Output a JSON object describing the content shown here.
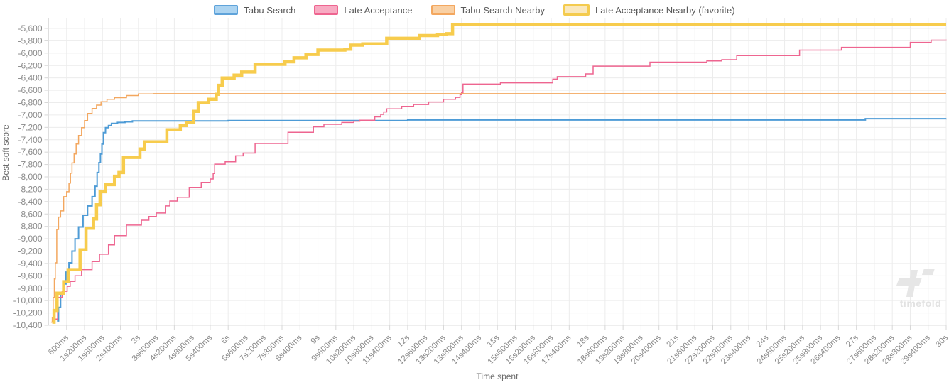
{
  "legend": {
    "items": [
      {
        "label": "Tabu Search",
        "fill": "#ACD4F1",
        "border": "#5FA3DA",
        "thick": false
      },
      {
        "label": "Late Acceptance",
        "fill": "#F8ABC3",
        "border": "#EE6590",
        "thick": false
      },
      {
        "label": "Tabu Search Nearby",
        "fill": "#F9D0A4",
        "border": "#F3A75F",
        "thick": false
      },
      {
        "label": "Late Acceptance Nearby (favorite)",
        "fill": "#FAE8BC",
        "border": "#F4CB4E",
        "thick": true
      }
    ]
  },
  "axes": {
    "x_title": "Time spent",
    "y_title": "Best soft score"
  },
  "watermark": {
    "text": "timefold"
  },
  "chart_data": {
    "type": "line",
    "step": true,
    "title": "",
    "xlabel": "Time spent",
    "ylabel": "Best soft score",
    "grid": true,
    "legend_position": "top",
    "xlim_seconds": [
      0,
      30
    ],
    "ylim": [
      -10400,
      -5500
    ],
    "x_tick_interval_ms": 600,
    "x_tick_labels": [
      "600ms",
      "1s200ms",
      "1s800ms",
      "2s400ms",
      "3s",
      "3s600ms",
      "4s200ms",
      "4s800ms",
      "5s400ms",
      "6s",
      "6s600ms",
      "7s200ms",
      "7s800ms",
      "8s400ms",
      "9s",
      "9s600ms",
      "10s200ms",
      "10s800ms",
      "11s400ms",
      "12s",
      "12s600ms",
      "13s200ms",
      "13s800ms",
      "14s400ms",
      "15s",
      "15s600ms",
      "16s200ms",
      "16s800ms",
      "17s400ms",
      "18s",
      "18s600ms",
      "19s200ms",
      "19s800ms",
      "20s400ms",
      "21s",
      "21s600ms",
      "22s200ms",
      "22s800ms",
      "23s400ms",
      "24s",
      "24s600ms",
      "25s200ms",
      "25s800ms",
      "26s400ms",
      "27s",
      "27s600ms",
      "28s200ms",
      "28s800ms",
      "29s400ms",
      "30s"
    ],
    "y_ticks": [
      -5600,
      -5800,
      -6000,
      -6200,
      -6400,
      -6600,
      -6800,
      -7000,
      -7200,
      -7400,
      -7600,
      -7800,
      -8000,
      -8200,
      -8400,
      -8600,
      -8800,
      -9000,
      -9200,
      -9400,
      -9600,
      -9800,
      -10000,
      -10200,
      -10400
    ],
    "y_tick_labels": [
      "-5,600",
      "-5,800",
      "-6,000",
      "-6,200",
      "-6,400",
      "-6,600",
      "-6,800",
      "-7,000",
      "-7,200",
      "-7,400",
      "-7,600",
      "-7,800",
      "-8,000",
      "-8,200",
      "-8,400",
      "-8,600",
      "-8,800",
      "-9,000",
      "-9,200",
      "-9,400",
      "-9,600",
      "-9,800",
      "-10,000",
      "-10,200",
      "-10,400"
    ],
    "series": [
      {
        "name": "Tabu Search",
        "color": "#4D9BD6",
        "width": 2,
        "points": [
          [
            0.28,
            -10330
          ],
          [
            0.33,
            -10110
          ],
          [
            0.4,
            -9880
          ],
          [
            0.48,
            -9730
          ],
          [
            0.58,
            -9540
          ],
          [
            0.68,
            -9390
          ],
          [
            0.78,
            -9200
          ],
          [
            0.88,
            -9000
          ],
          [
            1.0,
            -8810
          ],
          [
            1.15,
            -8620
          ],
          [
            1.3,
            -8470
          ],
          [
            1.45,
            -8320
          ],
          [
            1.55,
            -8150
          ],
          [
            1.62,
            -7930
          ],
          [
            1.68,
            -7770
          ],
          [
            1.73,
            -7630
          ],
          [
            1.78,
            -7470
          ],
          [
            1.83,
            -7285
          ],
          [
            1.9,
            -7205
          ],
          [
            2.0,
            -7170
          ],
          [
            2.1,
            -7135
          ],
          [
            2.3,
            -7120
          ],
          [
            2.55,
            -7110
          ],
          [
            2.8,
            -7095
          ],
          [
            6.0,
            -7090
          ],
          [
            12.0,
            -7080
          ],
          [
            27.3,
            -7060
          ],
          [
            30,
            -7055
          ]
        ]
      },
      {
        "name": "Late Acceptance",
        "color": "#EE6590",
        "width": 1.5,
        "points": [
          [
            0.22,
            -10300
          ],
          [
            0.3,
            -9950
          ],
          [
            0.45,
            -9850
          ],
          [
            0.62,
            -9770
          ],
          [
            0.72,
            -9690
          ],
          [
            0.88,
            -9600
          ],
          [
            1.1,
            -9500
          ],
          [
            1.45,
            -9370
          ],
          [
            1.7,
            -9250
          ],
          [
            2.0,
            -9100
          ],
          [
            2.2,
            -8950
          ],
          [
            2.6,
            -8780
          ],
          [
            3.1,
            -8700
          ],
          [
            3.35,
            -8640
          ],
          [
            3.6,
            -8585
          ],
          [
            3.9,
            -8470
          ],
          [
            4.05,
            -8390
          ],
          [
            4.3,
            -8330
          ],
          [
            4.7,
            -8170
          ],
          [
            5.1,
            -8090
          ],
          [
            5.4,
            -8035
          ],
          [
            5.5,
            -7945
          ],
          [
            5.55,
            -7795
          ],
          [
            5.9,
            -7755
          ],
          [
            6.25,
            -7660
          ],
          [
            6.5,
            -7615
          ],
          [
            6.9,
            -7460
          ],
          [
            8.0,
            -7280
          ],
          [
            8.85,
            -7190
          ],
          [
            9.2,
            -7150
          ],
          [
            9.8,
            -7120
          ],
          [
            10.2,
            -7100
          ],
          [
            10.4,
            -7085
          ],
          [
            10.9,
            -7030
          ],
          [
            11.1,
            -6990
          ],
          [
            11.2,
            -6950
          ],
          [
            11.3,
            -6900
          ],
          [
            11.8,
            -6860
          ],
          [
            12.2,
            -6830
          ],
          [
            12.7,
            -6790
          ],
          [
            13.2,
            -6745
          ],
          [
            13.6,
            -6715
          ],
          [
            13.75,
            -6670
          ],
          [
            13.8,
            -6640
          ],
          [
            13.85,
            -6500
          ],
          [
            15.1,
            -6480
          ],
          [
            16.85,
            -6420
          ],
          [
            17.0,
            -6380
          ],
          [
            17.95,
            -6335
          ],
          [
            18.2,
            -6210
          ],
          [
            20.1,
            -6145
          ],
          [
            22.0,
            -6125
          ],
          [
            22.5,
            -6105
          ],
          [
            23.0,
            -6040
          ],
          [
            25.1,
            -5950
          ],
          [
            26.5,
            -5905
          ],
          [
            28.8,
            -5825
          ],
          [
            29.5,
            -5790
          ],
          [
            30,
            -5780
          ]
        ]
      },
      {
        "name": "Tabu Search Nearby",
        "color": "#F3A75F",
        "width": 1.5,
        "points": [
          [
            0.08,
            -10350
          ],
          [
            0.12,
            -10270
          ],
          [
            0.15,
            -9950
          ],
          [
            0.19,
            -9650
          ],
          [
            0.22,
            -9390
          ],
          [
            0.27,
            -8850
          ],
          [
            0.33,
            -8650
          ],
          [
            0.4,
            -8550
          ],
          [
            0.5,
            -8320
          ],
          [
            0.6,
            -8240
          ],
          [
            0.68,
            -8100
          ],
          [
            0.73,
            -7940
          ],
          [
            0.78,
            -7775
          ],
          [
            0.85,
            -7630
          ],
          [
            0.92,
            -7470
          ],
          [
            1.0,
            -7330
          ],
          [
            1.1,
            -7205
          ],
          [
            1.2,
            -7090
          ],
          [
            1.3,
            -6975
          ],
          [
            1.45,
            -6895
          ],
          [
            1.6,
            -6840
          ],
          [
            1.75,
            -6785
          ],
          [
            1.95,
            -6745
          ],
          [
            2.2,
            -6720
          ],
          [
            2.6,
            -6685
          ],
          [
            3.0,
            -6660
          ],
          [
            3.5,
            -6655
          ],
          [
            30,
            -6655
          ]
        ]
      },
      {
        "name": "Late Acceptance Nearby (favorite)",
        "color": "#F7CC4D",
        "width": 4.5,
        "points": [
          [
            0.12,
            -10350
          ],
          [
            0.18,
            -10160
          ],
          [
            0.28,
            -9880
          ],
          [
            0.5,
            -9695
          ],
          [
            0.65,
            -9500
          ],
          [
            1.05,
            -9180
          ],
          [
            1.25,
            -8830
          ],
          [
            1.5,
            -8680
          ],
          [
            1.6,
            -8450
          ],
          [
            1.72,
            -8240
          ],
          [
            1.9,
            -8125
          ],
          [
            2.2,
            -7990
          ],
          [
            2.35,
            -7930
          ],
          [
            2.5,
            -7685
          ],
          [
            3.05,
            -7550
          ],
          [
            3.2,
            -7435
          ],
          [
            3.95,
            -7240
          ],
          [
            4.4,
            -7170
          ],
          [
            4.6,
            -7125
          ],
          [
            4.85,
            -6940
          ],
          [
            5.0,
            -6800
          ],
          [
            5.35,
            -6745
          ],
          [
            5.6,
            -6665
          ],
          [
            5.68,
            -6520
          ],
          [
            5.8,
            -6400
          ],
          [
            6.2,
            -6355
          ],
          [
            6.45,
            -6305
          ],
          [
            6.9,
            -6180
          ],
          [
            7.9,
            -6140
          ],
          [
            8.2,
            -6075
          ],
          [
            8.6,
            -6020
          ],
          [
            9.0,
            -5950
          ],
          [
            9.9,
            -5935
          ],
          [
            10.1,
            -5870
          ],
          [
            10.5,
            -5850
          ],
          [
            11.3,
            -5760
          ],
          [
            12.4,
            -5715
          ],
          [
            13.0,
            -5700
          ],
          [
            13.3,
            -5685
          ],
          [
            13.5,
            -5540
          ],
          [
            30,
            -5540
          ]
        ]
      }
    ]
  }
}
